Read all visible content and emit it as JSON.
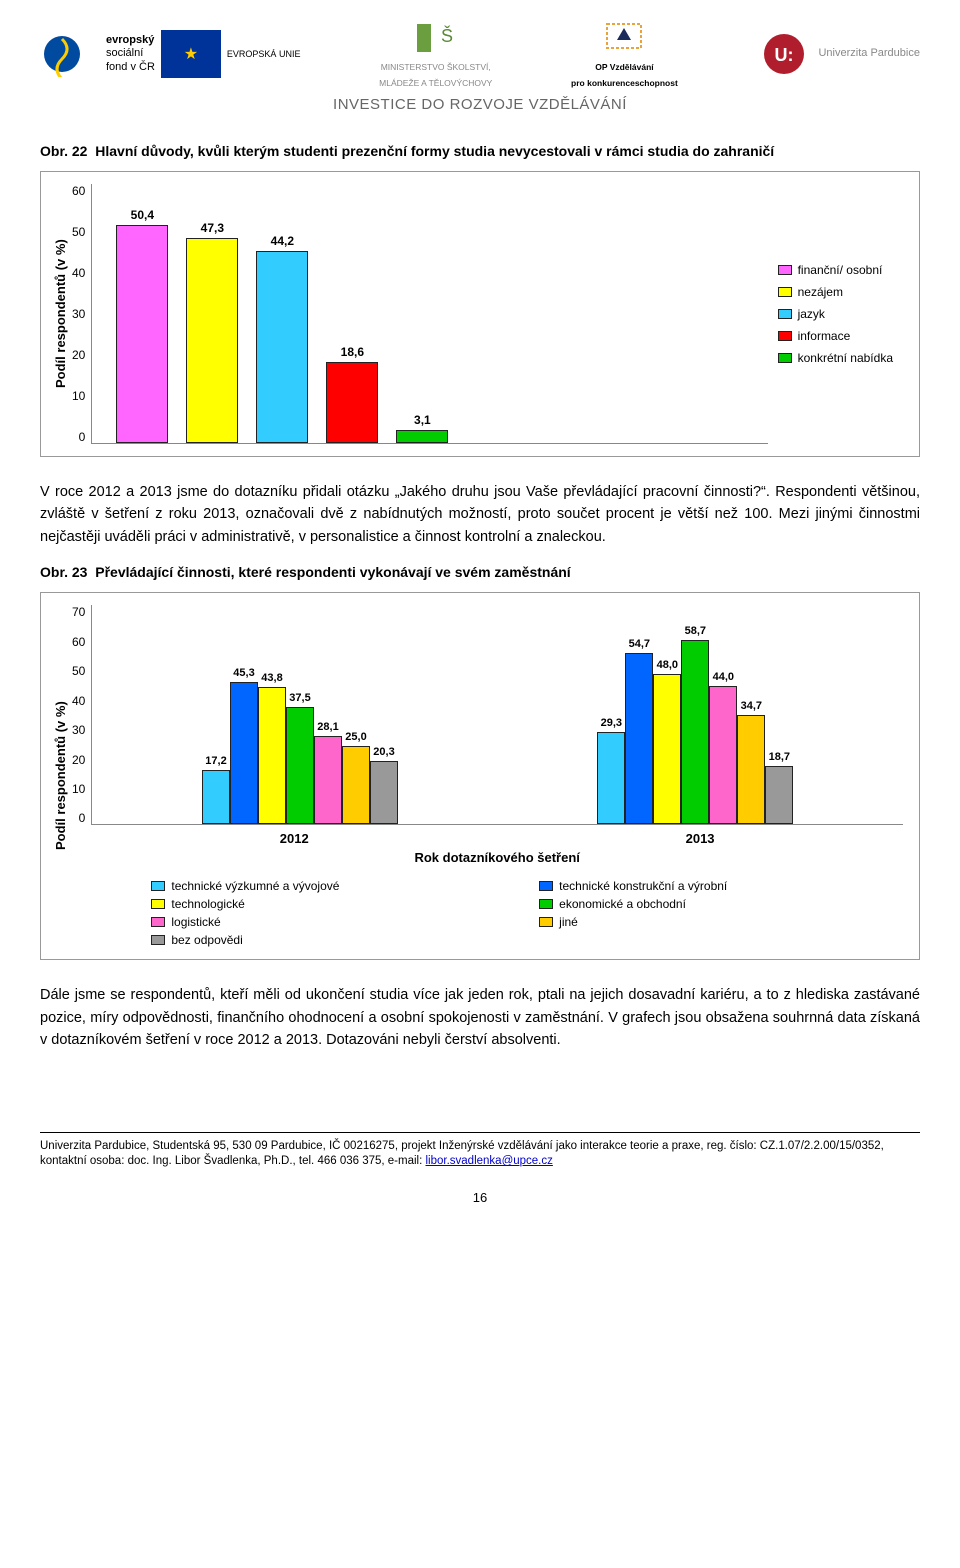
{
  "header": {
    "tagline": "INVESTICE DO ROZVOJE VZDĚLÁVÁNÍ",
    "logos": [
      {
        "name": "esf",
        "top": "evropský",
        "mid": "sociální",
        "bot": "fond v ČR",
        "flag": "EVROPSKÁ UNIE"
      },
      {
        "name": "msmt",
        "line1": "MINISTERSTVO ŠKOLSTVÍ,",
        "line2": "MLÁDEŽE A TĚLOVÝCHOVY"
      },
      {
        "name": "opvk",
        "line1": "OP Vzdělávání",
        "line2": "pro konkurenceschopnost"
      },
      {
        "name": "upce",
        "text": "Univerzita Pardubice"
      }
    ]
  },
  "fig22": {
    "caption_prefix": "Obr. 22",
    "caption": "Hlavní důvody, kvůli kterým studenti prezenční formy studia nevycestovali v rámci studia do zahraničí",
    "ylabel": "Podíl respondentů (v %)",
    "ylim": [
      0,
      60
    ],
    "ytick_step": 10,
    "yticks": [
      "60",
      "50",
      "40",
      "30",
      "20",
      "10",
      "0"
    ],
    "bars": [
      {
        "label": "50,4",
        "value": 50.4,
        "color": "#ff66ff",
        "name": "finanční/ osobní"
      },
      {
        "label": "47,3",
        "value": 47.3,
        "color": "#ffff00",
        "name": "nezájem"
      },
      {
        "label": "44,2",
        "value": 44.2,
        "color": "#33ccff",
        "name": "jazyk"
      },
      {
        "label": "18,6",
        "value": 18.6,
        "color": "#ff0000",
        "name": "informace"
      },
      {
        "label": "3,1",
        "value": 3.1,
        "color": "#00cc00",
        "name": "konkrétní nabídka"
      }
    ],
    "legend": [
      {
        "color": "#ff66ff",
        "label": "finanční/ osobní"
      },
      {
        "color": "#ffff00",
        "label": "nezájem"
      },
      {
        "color": "#33ccff",
        "label": "jazyk"
      },
      {
        "color": "#ff0000",
        "label": "informace"
      },
      {
        "color": "#00cc00",
        "label": "konkrétní nabídka"
      }
    ]
  },
  "para1": "V roce 2012 a 2013 jsme do dotazníku přidali otázku „Jakého druhu jsou Vaše převládající pracovní činnosti?“. Respondenti většinou, zvláště v šetření z roku 2013, označovali dvě z nabídnutých možností, proto součet procent je větší než 100. Mezi jinými činnostmi nejčastěji uváděli práci v administrativě, v personalistice a činnost kontrolní a znaleckou.",
  "fig23": {
    "caption_prefix": "Obr. 23",
    "caption": "Převládající činnosti, které respondenti vykonávají ve svém zaměstnání",
    "ylabel": "Podíl respondentů (v %)",
    "ylim": [
      0,
      70
    ],
    "ytick_step": 10,
    "yticks": [
      "70",
      "60",
      "50",
      "40",
      "30",
      "20",
      "10",
      "0"
    ],
    "xlabel": "Rok dotazníkového šetření",
    "groups": [
      {
        "x": "2012",
        "bars": [
          {
            "v": 17.2,
            "label": "17,2",
            "color": "#33ccff"
          },
          {
            "v": 45.3,
            "label": "45,3",
            "color": "#0066ff"
          },
          {
            "v": 43.8,
            "label": "43,8",
            "color": "#ffff00"
          },
          {
            "v": 37.5,
            "label": "37,5",
            "color": "#00cc00"
          },
          {
            "v": 28.1,
            "label": "28,1",
            "color": "#ff66cc"
          },
          {
            "v": 25.0,
            "label": "25,0",
            "color": "#ffcc00"
          },
          {
            "v": 20.3,
            "label": "20,3",
            "color": "#999999"
          }
        ]
      },
      {
        "x": "2013",
        "bars": [
          {
            "v": 29.3,
            "label": "29,3",
            "color": "#33ccff"
          },
          {
            "v": 54.7,
            "label": "54,7",
            "color": "#0066ff"
          },
          {
            "v": 48.0,
            "label": "48,0",
            "color": "#ffff00"
          },
          {
            "v": 58.7,
            "label": "58,7",
            "color": "#00cc00"
          },
          {
            "v": 44.0,
            "label": "44,0",
            "color": "#ff66cc"
          },
          {
            "v": 34.7,
            "label": "34,7",
            "color": "#ffcc00"
          },
          {
            "v": 18.7,
            "label": "18,7",
            "color": "#999999"
          }
        ]
      }
    ],
    "legend": [
      {
        "color": "#33ccff",
        "label": "technické výzkumné a vývojové"
      },
      {
        "color": "#0066ff",
        "label": "technické konstrukční a výrobní"
      },
      {
        "color": "#ffff00",
        "label": "technologické"
      },
      {
        "color": "#00cc00",
        "label": "ekonomické a obchodní"
      },
      {
        "color": "#ff66cc",
        "label": "logistické"
      },
      {
        "color": "#ffcc00",
        "label": "jiné"
      },
      {
        "color": "#999999",
        "label": "bez odpovědi"
      }
    ]
  },
  "para2": "Dále jsme se respondentů, kteří měli od ukončení studia více jak jeden rok, ptali na jejich dosavadní kariéru, a to z hlediska zastávané pozice, míry odpovědnosti, finančního ohodnocení a osobní spokojenosti v zaměstnání. V grafech jsou obsažena souhrnná data získaná v dotazníkovém šetření v roce 2012 a 2013. Dotazováni nebyli čerství absolventi.",
  "footer": {
    "text": "Univerzita Pardubice, Studentská 95, 530 09 Pardubice, IČ 00216275, projekt Inženýrské vzdělávání jako interakce teorie a praxe, reg. číslo: CZ.1.07/2.2.00/15/0352, kontaktní osoba: doc. Ing. Libor Švadlenka, Ph.D., tel. 466 036 375, e-mail: ",
    "email": "libor.svadlenka@upce.cz"
  },
  "page": "16"
}
